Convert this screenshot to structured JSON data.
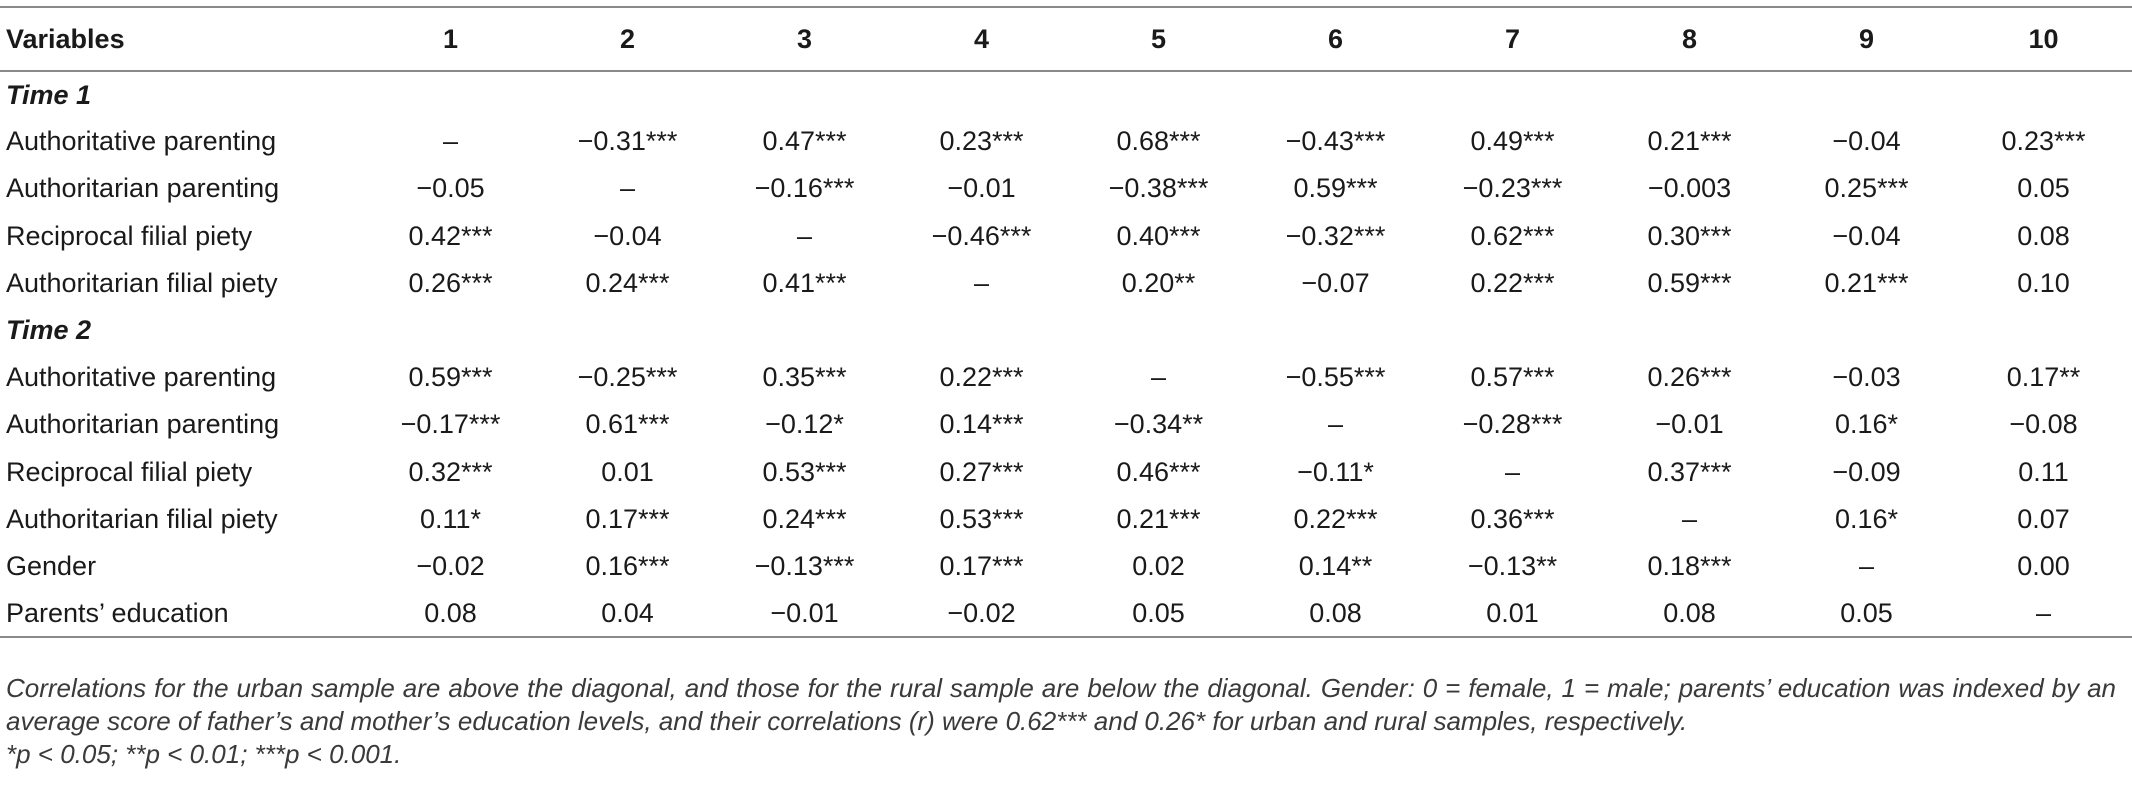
{
  "table": {
    "headers": [
      "Variables",
      "1",
      "2",
      "3",
      "4",
      "5",
      "6",
      "7",
      "8",
      "9",
      "10"
    ],
    "section1": "Time 1",
    "section2": "Time 2",
    "rows": [
      {
        "label": "Authoritative parenting",
        "cells": [
          "–",
          "−0.31***",
          "0.47***",
          "0.23***",
          "0.68***",
          "−0.43***",
          "0.49***",
          "0.21***",
          "−0.04",
          "0.23***"
        ]
      },
      {
        "label": "Authoritarian parenting",
        "cells": [
          "−0.05",
          "–",
          "−0.16***",
          "−0.01",
          "−0.38***",
          "0.59***",
          "−0.23***",
          "−0.003",
          "0.25***",
          "0.05"
        ]
      },
      {
        "label": "Reciprocal filial piety",
        "cells": [
          "0.42***",
          "−0.04",
          "–",
          "−0.46***",
          "0.40***",
          "−0.32***",
          "0.62***",
          "0.30***",
          "−0.04",
          "0.08"
        ]
      },
      {
        "label": "Authoritarian filial piety",
        "cells": [
          "0.26***",
          "0.24***",
          "0.41***",
          "–",
          "0.20**",
          "−0.07",
          "0.22***",
          "0.59***",
          "0.21***",
          "0.10"
        ]
      },
      {
        "label": "Authoritative parenting",
        "cells": [
          "0.59***",
          "−0.25***",
          "0.35***",
          "0.22***",
          "–",
          "−0.55***",
          "0.57***",
          "0.26***",
          "−0.03",
          "0.17**"
        ]
      },
      {
        "label": "Authoritarian parenting",
        "cells": [
          "−0.17***",
          "0.61***",
          "−0.12*",
          "0.14***",
          "−0.34**",
          "–",
          "−0.28***",
          "−0.01",
          "0.16*",
          "−0.08"
        ]
      },
      {
        "label": "Reciprocal filial piety",
        "cells": [
          "0.32***",
          "0.01",
          "0.53***",
          "0.27***",
          "0.46***",
          "−0.11*",
          "–",
          "0.37***",
          "−0.09",
          "0.11"
        ]
      },
      {
        "label": "Authoritarian filial piety",
        "cells": [
          "0.11*",
          "0.17***",
          "0.24***",
          "0.53***",
          "0.21***",
          "0.22***",
          "0.36***",
          "–",
          "0.16*",
          "0.07"
        ]
      },
      {
        "label": "Gender",
        "cells": [
          "−0.02",
          "0.16***",
          "−0.13***",
          "0.17***",
          "0.02",
          "0.14**",
          "−0.13**",
          "0.18***",
          "–",
          "0.00"
        ]
      },
      {
        "label": "Parents’ education",
        "cells": [
          "0.08",
          "0.04",
          "−0.01",
          "−0.02",
          "0.05",
          "0.08",
          "0.01",
          "0.08",
          "0.05",
          "–"
        ]
      }
    ]
  },
  "note": {
    "text": "Correlations for the urban sample are above the diagonal, and those for the rural sample are below the diagonal. Gender: 0 = female, 1 = male; parents’ education was indexed by an average score of father’s and mother’s education levels, and their correlations (r) were 0.62*** and 0.26* for urban and rural samples, respectively.",
    "significance": "*p < 0.05; **p < 0.01; ***p < 0.001."
  }
}
